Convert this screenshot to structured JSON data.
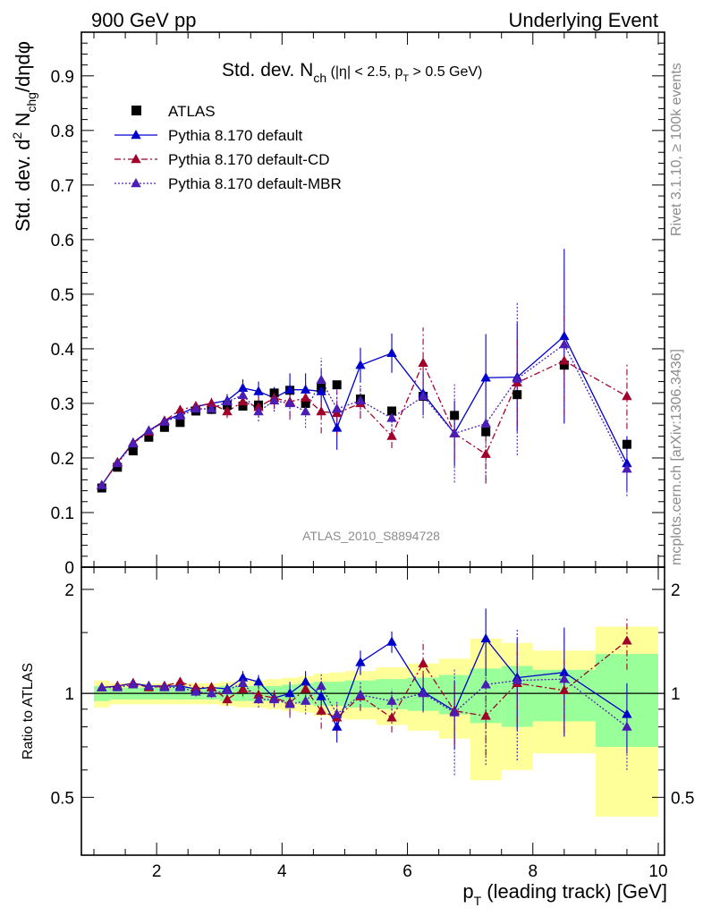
{
  "header": {
    "left": "900 GeV pp",
    "right": "Underlying Event"
  },
  "side_labels": {
    "rivet": "Rivet 3.1.10, ≥ 100k events",
    "mcplots": "mcplots.cern.ch [arXiv:1306.3436]"
  },
  "watermark": "ATLAS_2010_S8894728",
  "chart_data": {
    "type": "scatter",
    "title": {
      "main": "Std. dev. N",
      "sub": "ch",
      "rest1": " (|η| < 2.5, p",
      "sub2": "T",
      "rest2": " > 0.5 GeV)"
    },
    "ylabel": {
      "a": "Std. dev. d",
      "sup": "2",
      "b": " N",
      "sub": "chg",
      "c": "/dηdφ"
    },
    "ratio_ylabel": "Ratio to ATLAS",
    "xlabel": {
      "a": "p",
      "sub": "T",
      "b": " (leading track) [GeV]"
    },
    "xlim": [
      0.8,
      10.1
    ],
    "ylim": [
      0,
      0.98
    ],
    "ratio_ylim": [
      0.34,
      2.32
    ],
    "x_ticks": [
      2,
      4,
      6,
      8,
      10
    ],
    "x_tick_labels": [
      "2",
      "4",
      "6",
      "8",
      "10"
    ],
    "y_ticks": [
      0,
      0.1,
      0.2,
      0.3,
      0.4,
      0.5,
      0.6,
      0.7,
      0.8,
      0.9
    ],
    "y_tick_labels": [
      "0",
      "0.1",
      "0.2",
      "0.3",
      "0.4",
      "0.5",
      "0.6",
      "0.7",
      "0.8",
      "0.9"
    ],
    "ratio_ticks": [
      0.5,
      1,
      2
    ],
    "ratio_tick_labels": [
      "0.5",
      "1",
      "2"
    ],
    "legend_position": "top-left",
    "series": [
      {
        "name": "ATLAS",
        "color": "#000000",
        "marker": "square",
        "x": [
          1.125,
          1.375,
          1.625,
          1.875,
          2.125,
          2.375,
          2.625,
          2.875,
          3.125,
          3.375,
          3.625,
          3.875,
          4.125,
          4.375,
          4.625,
          4.875,
          5.25,
          5.75,
          6.25,
          6.75,
          7.25,
          7.75,
          8.5,
          9.5
        ],
        "y": [
          0.145,
          0.183,
          0.213,
          0.238,
          0.256,
          0.265,
          0.286,
          0.289,
          0.297,
          0.295,
          0.297,
          0.319,
          0.324,
          0.3,
          0.328,
          0.334,
          0.308,
          0.286,
          0.313,
          0.278,
          0.248,
          0.316,
          0.37,
          0.225
        ]
      },
      {
        "name": "Pythia 8.170 default",
        "color": "#0000cc",
        "marker": "triangle",
        "line": "solid",
        "x": [
          1.125,
          1.375,
          1.625,
          1.875,
          2.125,
          2.375,
          2.625,
          2.875,
          3.125,
          3.375,
          3.625,
          3.875,
          4.125,
          4.375,
          4.625,
          4.875,
          5.25,
          5.75,
          6.25,
          6.75,
          7.25,
          7.75,
          8.5,
          9.5
        ],
        "y": [
          0.15,
          0.192,
          0.228,
          0.25,
          0.268,
          0.28,
          0.294,
          0.3,
          0.305,
          0.328,
          0.322,
          0.31,
          0.325,
          0.325,
          0.322,
          0.255,
          0.37,
          0.392,
          0.318,
          0.245,
          0.347,
          0.348,
          0.423,
          0.19
        ],
        "err": [
          0.004,
          0.004,
          0.004,
          0.004,
          0.005,
          0.006,
          0.008,
          0.01,
          0.012,
          0.016,
          0.018,
          0.02,
          0.03,
          0.03,
          0.04,
          0.04,
          0.032,
          0.036,
          0.04,
          0.06,
          0.08,
          0.1,
          0.16,
          0.05
        ]
      },
      {
        "name": "Pythia 8.170 default-CD",
        "color": "#a0002a",
        "marker": "triangle",
        "line": "dashdot",
        "x": [
          1.125,
          1.375,
          1.625,
          1.875,
          2.125,
          2.375,
          2.625,
          2.875,
          3.125,
          3.375,
          3.625,
          3.875,
          4.125,
          4.375,
          4.625,
          4.875,
          5.25,
          5.75,
          6.25,
          6.75,
          7.25,
          7.75,
          8.5,
          9.5
        ],
        "y": [
          0.15,
          0.192,
          0.227,
          0.248,
          0.268,
          0.288,
          0.295,
          0.3,
          0.285,
          0.303,
          0.293,
          0.31,
          0.303,
          0.31,
          0.285,
          0.282,
          0.3,
          0.24,
          0.374,
          0.245,
          0.207,
          0.338,
          0.378,
          0.313
        ],
        "err": [
          0.004,
          0.004,
          0.004,
          0.004,
          0.005,
          0.006,
          0.008,
          0.01,
          0.012,
          0.016,
          0.018,
          0.02,
          0.03,
          0.03,
          0.04,
          0.04,
          0.028,
          0.022,
          0.065,
          0.05,
          0.052,
          0.08,
          0.1,
          0.06
        ]
      },
      {
        "name": "Pythia 8.170 default-MBR",
        "color": "#4a1db5",
        "marker": "triangle",
        "line": "dotted",
        "x": [
          1.125,
          1.375,
          1.625,
          1.875,
          2.125,
          2.375,
          2.625,
          2.875,
          3.125,
          3.375,
          3.625,
          3.875,
          4.125,
          4.375,
          4.625,
          4.875,
          5.25,
          5.75,
          6.25,
          6.75,
          7.25,
          7.75,
          8.5,
          9.5
        ],
        "y": [
          0.15,
          0.19,
          0.226,
          0.25,
          0.266,
          0.277,
          0.29,
          0.29,
          0.303,
          0.315,
          0.285,
          0.305,
          0.3,
          0.285,
          0.343,
          0.29,
          0.305,
          0.273,
          0.313,
          0.245,
          0.263,
          0.345,
          0.408,
          0.18
        ],
        "err": [
          0.004,
          0.004,
          0.004,
          0.004,
          0.005,
          0.006,
          0.008,
          0.01,
          0.012,
          0.016,
          0.018,
          0.02,
          0.03,
          0.03,
          0.04,
          0.04,
          0.028,
          0.022,
          0.04,
          0.09,
          0.11,
          0.14,
          0.14,
          0.05
        ]
      }
    ],
    "ratio_series": [
      {
        "name": "Pythia 8.170 default",
        "y": [
          1.04,
          1.05,
          1.07,
          1.05,
          1.05,
          1.05,
          1.03,
          1.04,
          1.03,
          1.11,
          1.08,
          0.97,
          1.0,
          1.08,
          0.98,
          0.8,
          1.23,
          1.41,
          1.01,
          0.89,
          1.44,
          1.11,
          1.15,
          0.87
        ],
        "err": [
          0.02,
          0.02,
          0.02,
          0.02,
          0.02,
          0.02,
          0.03,
          0.03,
          0.04,
          0.05,
          0.05,
          0.05,
          0.08,
          0.08,
          0.1,
          0.08,
          0.1,
          0.1,
          0.12,
          0.2,
          0.32,
          0.33,
          0.4,
          0.2
        ]
      },
      {
        "name": "Pythia 8.170 default-CD",
        "y": [
          1.04,
          1.05,
          1.07,
          1.04,
          1.05,
          1.08,
          1.04,
          1.04,
          0.96,
          1.03,
          0.99,
          0.97,
          0.94,
          1.03,
          0.89,
          0.85,
          0.98,
          0.85,
          1.22,
          0.89,
          0.86,
          1.07,
          1.02,
          1.42
        ],
        "err": [
          0.02,
          0.02,
          0.02,
          0.02,
          0.02,
          0.02,
          0.03,
          0.03,
          0.04,
          0.05,
          0.05,
          0.05,
          0.08,
          0.08,
          0.1,
          0.08,
          0.09,
          0.08,
          0.2,
          0.18,
          0.2,
          0.25,
          0.25,
          0.25
        ]
      },
      {
        "name": "Pythia 8.170 default-MBR",
        "y": [
          1.04,
          1.04,
          1.06,
          1.05,
          1.04,
          1.04,
          1.01,
          1.0,
          1.02,
          1.07,
          0.96,
          0.96,
          0.93,
          0.95,
          1.05,
          0.87,
          0.99,
          0.95,
          1.0,
          0.88,
          1.06,
          1.09,
          1.1,
          0.8
        ],
        "err": [
          0.02,
          0.02,
          0.02,
          0.02,
          0.02,
          0.02,
          0.03,
          0.03,
          0.04,
          0.05,
          0.05,
          0.05,
          0.08,
          0.08,
          0.1,
          0.08,
          0.09,
          0.08,
          0.12,
          0.3,
          0.44,
          0.45,
          0.35,
          0.2
        ]
      }
    ],
    "ratio_bands": {
      "edges": [
        1.0,
        1.25,
        1.5,
        1.75,
        2.0,
        2.25,
        2.5,
        2.75,
        3.0,
        3.25,
        3.5,
        3.75,
        4.0,
        4.25,
        4.5,
        4.75,
        5.0,
        5.5,
        6.0,
        6.5,
        7.0,
        7.5,
        8.0,
        9.0,
        10.0
      ],
      "green": [
        0.05,
        0.04,
        0.04,
        0.04,
        0.04,
        0.04,
        0.04,
        0.04,
        0.05,
        0.05,
        0.05,
        0.05,
        0.06,
        0.07,
        0.08,
        0.08,
        0.09,
        0.1,
        0.11,
        0.13,
        0.18,
        0.2,
        0.17,
        0.3
      ],
      "yellow": [
        0.09,
        0.07,
        0.07,
        0.07,
        0.07,
        0.07,
        0.07,
        0.07,
        0.08,
        0.09,
        0.09,
        0.1,
        0.11,
        0.12,
        0.14,
        0.15,
        0.16,
        0.19,
        0.22,
        0.26,
        0.44,
        0.4,
        0.33,
        0.56
      ]
    }
  }
}
